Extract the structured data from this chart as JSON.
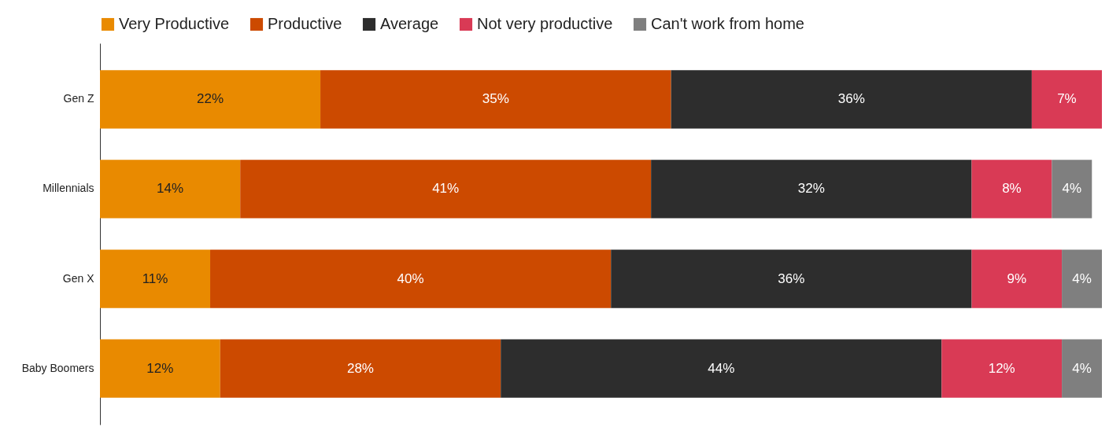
{
  "chart_data": {
    "type": "bar",
    "orientation": "horizontal",
    "stacked": true,
    "legend": "top",
    "grid": false,
    "tick_labels": "y",
    "categories": [
      "Gen Z",
      "Millennials",
      "Gen X",
      "Baby Boomers"
    ],
    "series": [
      {
        "name": "Very Productive",
        "color": "#e98a00",
        "values": [
          22,
          14,
          11,
          12
        ],
        "value_labels": [
          "22%",
          "14%",
          "11%",
          "12%"
        ]
      },
      {
        "name": "Productive",
        "color": "#cc4a00",
        "values": [
          35,
          41,
          40,
          28
        ],
        "value_labels": [
          "35%",
          "41%",
          "40%",
          "28%"
        ]
      },
      {
        "name": "Average",
        "color": "#2d2d2d",
        "values": [
          36,
          32,
          36,
          44
        ],
        "value_labels": [
          "36%",
          "32%",
          "36%",
          "44%"
        ]
      },
      {
        "name": "Not very productive",
        "color": "#d93a55",
        "values": [
          7,
          8,
          9,
          12
        ],
        "value_labels": [
          "7%",
          "8%",
          "9%",
          "12%"
        ]
      },
      {
        "name": "Can't work from home",
        "color": "#7f7f7f",
        "values": [
          null,
          4,
          4,
          4
        ],
        "value_labels": [
          null,
          "4%",
          "4%",
          "4%"
        ]
      }
    ]
  }
}
